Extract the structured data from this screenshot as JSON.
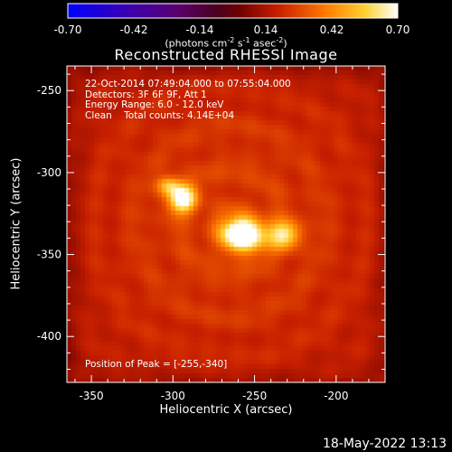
{
  "colorbar": {
    "ticks": [
      "-0.70",
      "-0.42",
      "-0.14",
      "0.14",
      "0.42",
      "0.70"
    ],
    "units_text": "(photons cm",
    "units_exp1": "-2",
    "units_mid": " s",
    "units_exp2": "-1",
    "units_mid2": " asec",
    "units_exp3": "-2",
    "units_end": ")"
  },
  "chart_data": {
    "type": "heatmap",
    "title": "Reconstructed RHESSI Image",
    "xlabel": "Heliocentric X (arcsec)",
    "ylabel": "Heliocentric Y (arcsec)",
    "xlim": [
      -365,
      -170
    ],
    "ylim": [
      -428,
      -235
    ],
    "x_ticks": [
      "-350",
      "-300",
      "-250",
      "-200"
    ],
    "y_ticks": [
      "-250",
      "-300",
      "-350",
      "-400"
    ],
    "value_range": [
      -0.7,
      0.7
    ],
    "sources": [
      {
        "x": -257,
        "y": -338,
        "sigma_x": 9,
        "sigma_y": 7,
        "amp": 0.7
      },
      {
        "x": -294,
        "y": -316,
        "sigma_x": 6,
        "sigma_y": 6,
        "amp": 0.52
      },
      {
        "x": -303,
        "y": -308,
        "sigma_x": 5,
        "sigma_y": 4,
        "amp": 0.3
      },
      {
        "x": -232,
        "y": -338,
        "sigma_x": 7,
        "sigma_y": 6,
        "amp": 0.38
      }
    ],
    "annotations": {
      "line1": "22-Oct-2014 07:49:04.000 to 07:55:04.000",
      "line2": "Detectors: 3F 6F 9F, Att 1",
      "line3": "Energy Range: 6.0 - 12.0 keV",
      "line4": "Clean    Total counts: 4.14E+04",
      "peak": "Position of Peak = [-255,-340]"
    }
  },
  "footer": {
    "date": "18-May-2022 13:13"
  },
  "colors": {
    "background": "#000000",
    "foreground": "#ffffff"
  }
}
